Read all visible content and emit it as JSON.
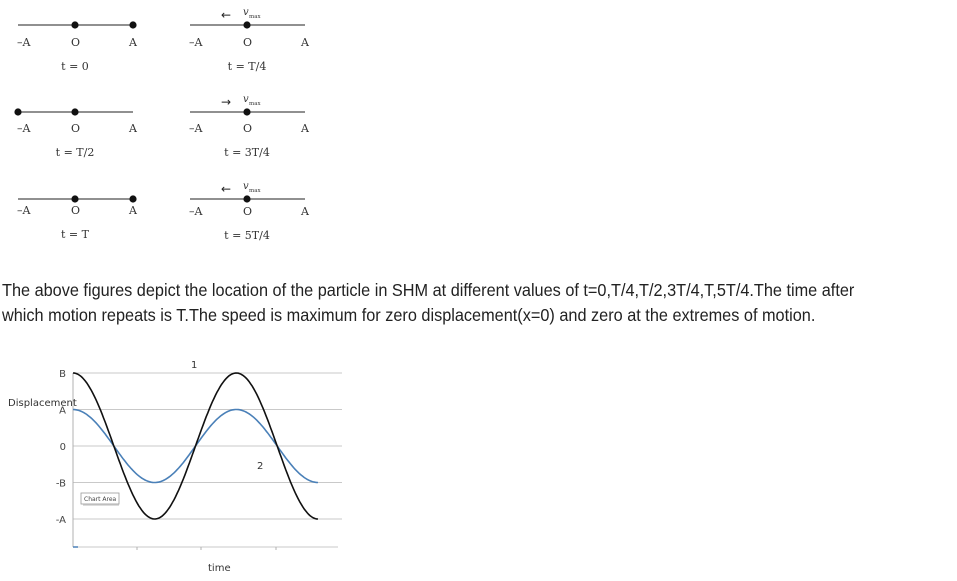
{
  "shm_diagram": {
    "panels": [
      {
        "time_label": "t = 0",
        "left_label": "–A",
        "center_label": "O",
        "right_label": "A",
        "particle_at": "A",
        "velocity_arrow": "",
        "velocity_label": ""
      },
      {
        "time_label": "t = T/4",
        "left_label": "–A",
        "center_label": "O",
        "right_label": "A",
        "particle_at": "O",
        "velocity_arrow": "←",
        "velocity_label": "v"
      },
      {
        "time_label": "t = T/2",
        "left_label": "–A",
        "center_label": "O",
        "right_label": "A",
        "particle_at": "-A",
        "velocity_arrow": "",
        "velocity_label": ""
      },
      {
        "time_label": "t = 3T/4",
        "left_label": "–A",
        "center_label": "O",
        "right_label": "A",
        "particle_at": "O",
        "velocity_arrow": "→",
        "velocity_label": "v"
      },
      {
        "time_label": "t = T",
        "left_label": "–A",
        "center_label": "O",
        "right_label": "A",
        "particle_at": "A",
        "velocity_arrow": "",
        "velocity_label": ""
      },
      {
        "time_label": "t = 5T/4",
        "left_label": "–A",
        "center_label": "O",
        "right_label": "A",
        "particle_at": "O",
        "velocity_arrow": "←",
        "velocity_label": "v"
      }
    ],
    "velocity_subscript": "max"
  },
  "paragraph": {
    "line1": "The above figures depict the location of the particle in SHM at different values of t=0,T/4,T/2,3T/4,T,5T/4.The time after",
    "line2": "which motion repeats is T.The speed is maximum for zero displacement(x=0) and zero at the extremes of motion."
  },
  "chart_data": {
    "type": "line",
    "xlabel": "time",
    "ylabel": "Displacement",
    "y_ticks": [
      "B",
      "A",
      "0",
      "-B",
      "-A"
    ],
    "y_tick_values": [
      2,
      1,
      0,
      -1,
      -2
    ],
    "ylim": [
      -2,
      2
    ],
    "grid": true,
    "series": [
      {
        "name": "1",
        "color": "#111111",
        "amplitude": 2,
        "periods": 1.5,
        "phase": "cos"
      },
      {
        "name": "2",
        "color": "#4a80b8",
        "amplitude": 1,
        "periods": 1.5,
        "phase": "cos"
      }
    ],
    "tooltip": "Chart Area"
  }
}
